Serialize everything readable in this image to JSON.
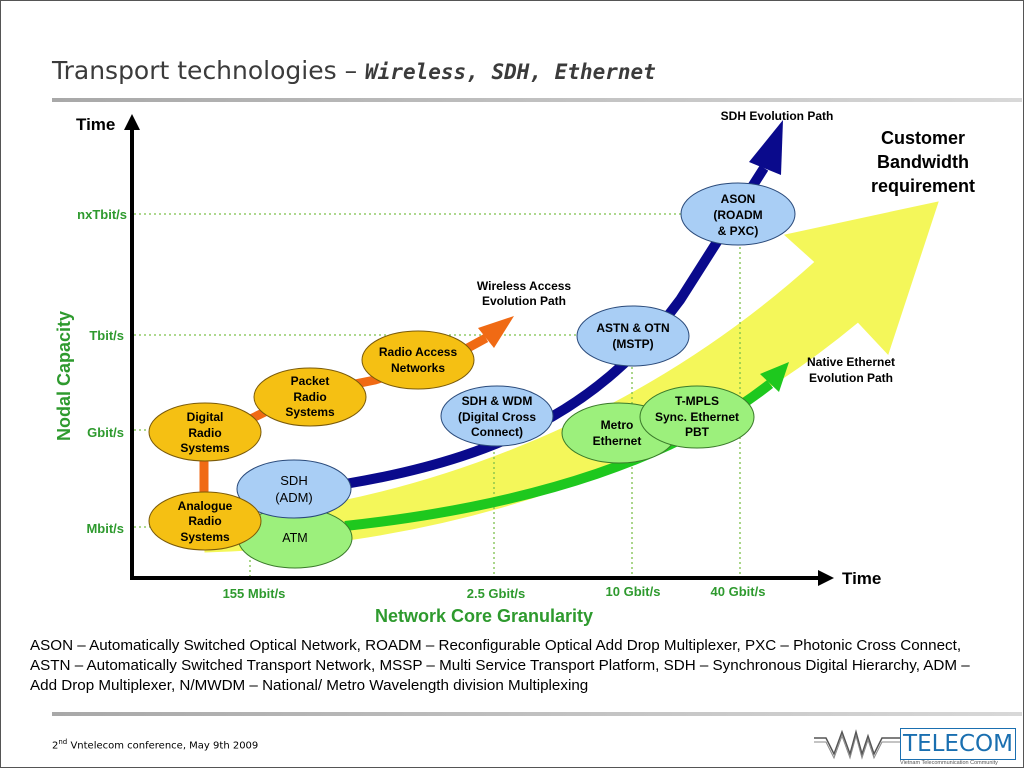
{
  "slide": {
    "title_main": "Transport technologies – ",
    "title_sub": "Wireless, SDH, Ethernet"
  },
  "axes": {
    "y_title": "Time",
    "x_title": "Time",
    "y_label": "Nodal Capacity",
    "x_label": "Network Core Granularity",
    "y_ticks": [
      "nxTbit/s",
      "Tbit/s",
      "Gbit/s",
      "Mbit/s"
    ],
    "x_ticks": [
      "155 Mbit/s",
      "2.5 Gbit/s",
      "10 Gbit/s",
      "40 Gbit/s"
    ]
  },
  "paths": {
    "sdh": "SDH Evolution Path",
    "wireless": [
      "Wireless Access",
      "Evolution Path"
    ],
    "ethernet": [
      "Native Ethernet",
      "Evolution Path"
    ],
    "customer": [
      "Customer",
      "Bandwidth",
      "requirement"
    ]
  },
  "nodes": {
    "analogue": [
      "Analogue",
      "Radio",
      "Systems"
    ],
    "digital": [
      "Digital",
      "Radio",
      "Systems"
    ],
    "packet": [
      "Packet",
      "Radio",
      "Systems"
    ],
    "ran": [
      "Radio Access",
      "Networks"
    ],
    "sdh_adm": [
      "SDH",
      "(ADM)"
    ],
    "atm": [
      "ATM"
    ],
    "sdh_wdm": [
      "SDH & WDM",
      "(Digital Cross",
      "Connect)"
    ],
    "astn": [
      "ASTN & OTN",
      "(MSTP)"
    ],
    "ason": [
      "ASON",
      "(ROADM",
      "& PXC)"
    ],
    "metro": [
      "Metro",
      "Ethernet"
    ],
    "tmpls": [
      "T-MPLS",
      "Sync. Ethernet",
      "PBT"
    ]
  },
  "legend": "ASON – Automatically Switched Optical Network, ROADM – Reconfigurable Optical Add Drop Multiplexer, PXC – Photonic Cross Connect, ASTN – Automatically Switched Transport Network, MSSP – Multi Service Transport Platform, SDH – Synchronous Digital Hierarchy, ADM – Add Drop Multiplexer, N/MWDM – National/ Metro Wavelength division Multiplexing",
  "footer": {
    "ordinal": "2",
    "sup": "nd",
    "text": " Vntelecom conference, May 9th 2009"
  },
  "logo": {
    "name": "TELECOM",
    "tagline": "Vietnam Telecommunication Community"
  },
  "colors": {
    "axis_green": "#2e9a2e",
    "sdh_path": "#0a0a8c",
    "ethernet_path": "#1ec81e",
    "wireless_path": "#f06a14",
    "customer_arrow": "#f4f75a",
    "blue_node": "#a9cef5",
    "orange_node": "#f5c013",
    "green_node": "#9cf07c"
  }
}
